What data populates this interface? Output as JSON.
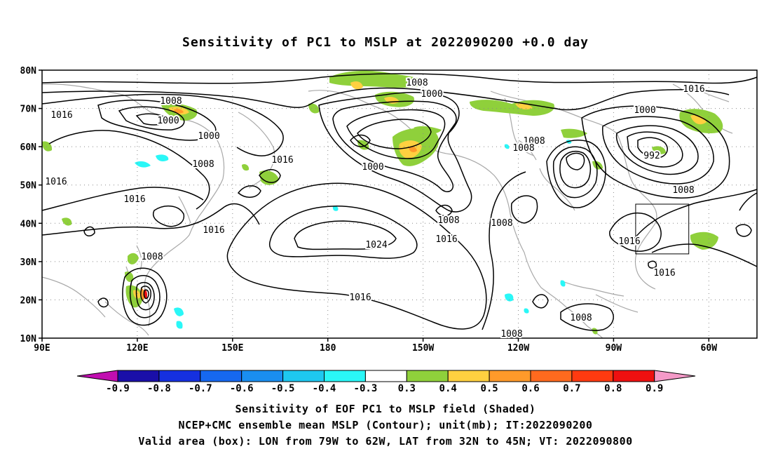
{
  "title": "Sensitivity of PC1 to MSLP at 2022090200 +0.0 day",
  "lat_labels": [
    "80N",
    "70N",
    "60N",
    "50N",
    "40N",
    "30N",
    "20N",
    "10N"
  ],
  "lon_labels": [
    "90E",
    "120E",
    "150E",
    "180",
    "150W",
    "120W",
    "90W",
    "60W"
  ],
  "contour_labels": [
    "1008",
    "1016",
    "1000",
    "1000",
    "1008",
    "1016",
    "1008",
    "1000",
    "1016",
    "1024",
    "1008",
    "1016",
    "1008",
    "1008",
    "1000",
    "1016",
    "1000",
    "992",
    "1008",
    "1016",
    "1016",
    "1016",
    "1008",
    "1016",
    "1008",
    "1008",
    "1008",
    "1016"
  ],
  "colorbar": {
    "labels": [
      "-0.9",
      "-0.8",
      "-0.7",
      "-0.6",
      "-0.5",
      "-0.4",
      "-0.3",
      "0.3",
      "0.4",
      "0.5",
      "0.6",
      "0.7",
      "0.8",
      "0.9"
    ],
    "colors": [
      "#c10eb0",
      "#1a0fa8",
      "#1530e0",
      "#1668f0",
      "#1a8ef0",
      "#1ec8f0",
      "#2af7f7",
      "#ffffff",
      "#8fd03b",
      "#ffd040",
      "#ff9a2a",
      "#ff6a1e",
      "#ff3a10",
      "#ee1010",
      "#f49ac8"
    ]
  },
  "captions": [
    "Sensitivity of EOF PC1 to MSLP field (Shaded)",
    "NCEP+CMC ensemble mean MSLP (Contour); unit(mb); IT:2022090200",
    "Valid area (box): LON from 79W to 62W, LAT from 32N to 45N; VT: 2022090800"
  ]
}
